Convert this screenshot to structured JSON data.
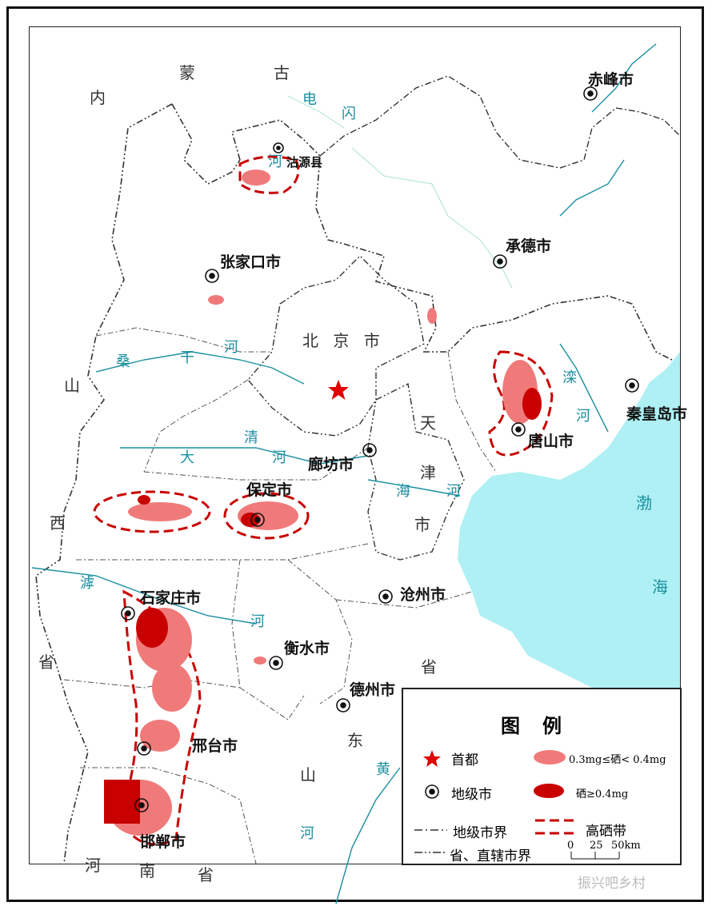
{
  "map": {
    "regions": {
      "inner_mongolia": [
        "内",
        "蒙",
        "古"
      ],
      "shanxi": [
        "山",
        "西",
        "省"
      ],
      "henan": [
        "河",
        "南",
        "省"
      ],
      "shandong": [
        "山",
        "东",
        "省"
      ],
      "beijing": "北 京 市",
      "tianjin": [
        "天",
        "津",
        "市"
      ]
    },
    "sea": [
      "渤",
      "海"
    ],
    "rivers": {
      "shandian": [
        "电",
        "闪",
        "河"
      ],
      "sanggan": [
        "桑",
        "干",
        "河"
      ],
      "daqing": [
        "大",
        "清",
        "河"
      ],
      "haihe": [
        "海",
        "河"
      ],
      "hutuo": [
        "滹",
        "河"
      ],
      "luanhe": [
        "滦",
        "河"
      ],
      "huanghe": [
        "黄",
        "河"
      ]
    },
    "cities": {
      "chifeng": "赤峰市",
      "guyuan": "沽源县",
      "zhangjiakou": "张家口市",
      "chengde": "承德市",
      "qinhuangdao": "秦皇岛市",
      "tangshan": "唐山市",
      "langfang": "廊坊市",
      "baoding": "保定市",
      "shijiazhuang": "石家庄市",
      "cangzhou": "沧州市",
      "hengshui": "衡水市",
      "dezhou": "德州市",
      "xingtai": "邢台市",
      "handan": "邯郸市"
    },
    "colors": {
      "se_mid": "#f07a7a",
      "se_high": "#c80000",
      "sea": "#aef0f4",
      "river": "#1a8fa0",
      "capital": "#e00000"
    }
  },
  "legend": {
    "title": "图例",
    "capital": "首都",
    "prefecture_city": "地级市",
    "prefecture_boundary": "地级市界",
    "province_boundary": "省、直辖市界",
    "se_mid": "0.3mg≤硒< 0.4mg",
    "se_high": "硒≥0.4mg",
    "high_se_belt": "高硒带",
    "scale_ticks": [
      "0",
      "25",
      "50km"
    ]
  },
  "watermark": "振兴吧乡村"
}
